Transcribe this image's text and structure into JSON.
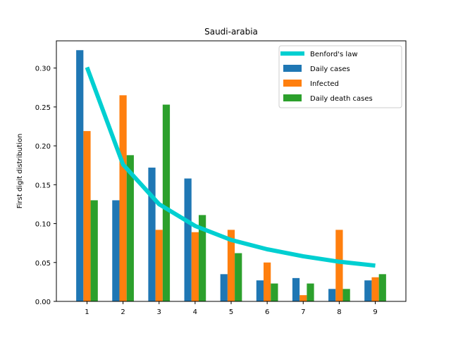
{
  "chart_data": {
    "type": "bar",
    "title": "Saudi-arabia",
    "xlabel": "",
    "ylabel": "First digit distribution",
    "categories": [
      "1",
      "2",
      "3",
      "4",
      "5",
      "6",
      "7",
      "8",
      "9"
    ],
    "x": [
      1,
      2,
      3,
      4,
      5,
      6,
      7,
      8,
      9
    ],
    "ylim": [
      0,
      0.335
    ],
    "xlim": [
      0.15,
      9.85
    ],
    "yticks": [
      "0.00",
      "0.05",
      "0.10",
      "0.15",
      "0.20",
      "0.25",
      "0.30"
    ],
    "grid": false,
    "legend_position": "top-right",
    "series": [
      {
        "name": "Daily cases",
        "kind": "bar",
        "color": "#1f77b4",
        "values": [
          0.323,
          0.13,
          0.172,
          0.158,
          0.035,
          0.027,
          0.03,
          0.016,
          0.027
        ]
      },
      {
        "name": "Infected",
        "kind": "bar",
        "color": "#ff7f0e",
        "values": [
          0.219,
          0.265,
          0.092,
          0.089,
          0.092,
          0.05,
          0.008,
          0.092,
          0.031
        ]
      },
      {
        "name": "Daily death cases",
        "kind": "bar",
        "color": "#2ca02c",
        "values": [
          0.13,
          0.188,
          0.253,
          0.111,
          0.062,
          0.023,
          0.023,
          0.016,
          0.035
        ]
      }
    ],
    "line": {
      "name": "Benford's law",
      "kind": "line",
      "color": "#00cfd1",
      "values": [
        0.301,
        0.176,
        0.125,
        0.097,
        0.079,
        0.067,
        0.058,
        0.051,
        0.046
      ]
    }
  }
}
